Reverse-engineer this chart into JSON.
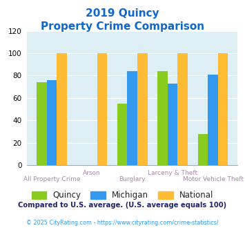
{
  "title_line1": "2019 Quincy",
  "title_line2": "Property Crime Comparison",
  "categories": [
    "All Property Crime",
    "Arson",
    "Burglary",
    "Larceny & Theft",
    "Motor Vehicle Theft"
  ],
  "quincy": [
    74,
    0,
    55,
    84,
    28
  ],
  "michigan": [
    76,
    0,
    84,
    73,
    81
  ],
  "national": [
    100,
    100,
    100,
    100,
    100
  ],
  "color_quincy": "#88cc22",
  "color_michigan": "#3399ee",
  "color_national": "#ffbb33",
  "ylim": [
    0,
    120
  ],
  "yticks": [
    0,
    20,
    40,
    60,
    80,
    100,
    120
  ],
  "bg_color": "#ddeef5",
  "footnote1": "Compared to U.S. average. (U.S. average equals 100)",
  "footnote2": "© 2025 CityRating.com - https://www.cityrating.com/crime-statistics/",
  "title_color": "#1166cc",
  "xlabel_color": "#aa88aa",
  "footnote1_color": "#222266",
  "footnote2_color": "#3399ee",
  "legend_label_color": "#222222"
}
